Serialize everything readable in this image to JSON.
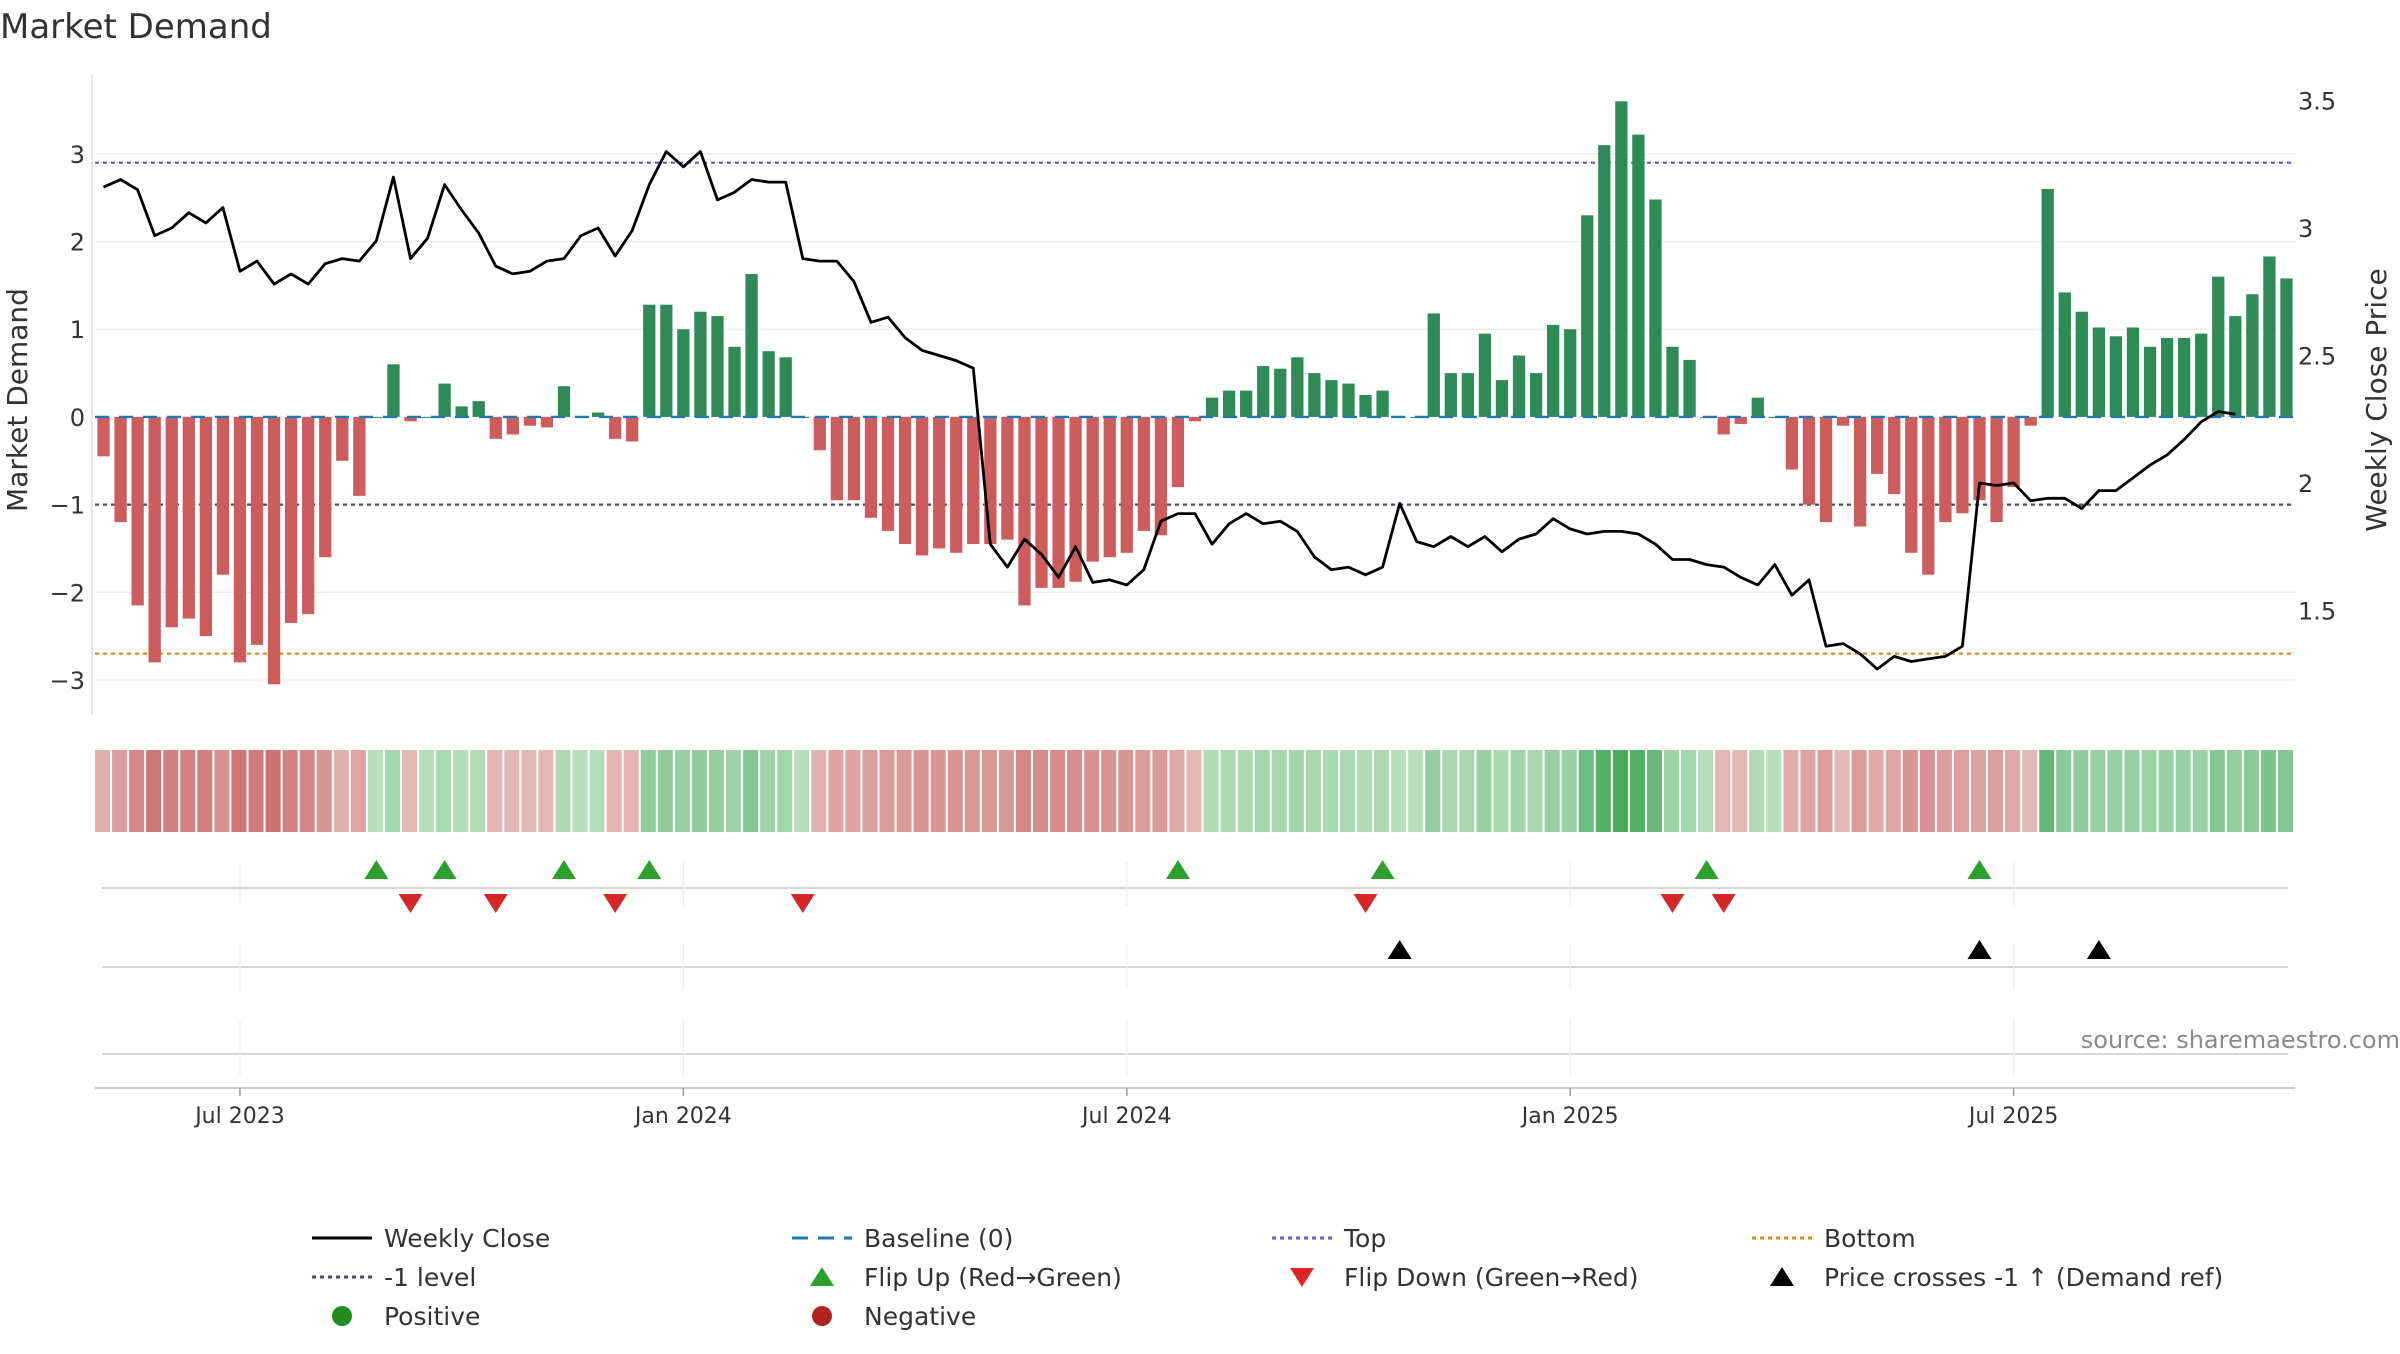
{
  "chart_data": {
    "type": "bar",
    "title": "Market Demand",
    "source_note": "source: sharemaestro.com",
    "ylabel_left": "Market Demand",
    "ylabel_right": "Weekly Close Price",
    "ylim_left": [
      -3.4,
      3.9
    ],
    "ylim_right": [
      1.09,
      3.6
    ],
    "yticks_left": [
      {
        "value": 3,
        "label": "3"
      },
      {
        "value": 2,
        "label": "2"
      },
      {
        "value": 1,
        "label": "1"
      },
      {
        "value": 0,
        "label": "0"
      },
      {
        "value": -1,
        "label": "−1"
      },
      {
        "value": -2,
        "label": "−2"
      },
      {
        "value": -3,
        "label": "−3"
      }
    ],
    "yticks_right": [
      {
        "value": 3.5,
        "label": "3.5"
      },
      {
        "value": 3,
        "label": "3"
      },
      {
        "value": 2.5,
        "label": "2.5"
      },
      {
        "value": 2,
        "label": "2"
      },
      {
        "value": 1.5,
        "label": "1.5"
      }
    ],
    "x_ticks": [
      {
        "week": 8,
        "label": "Jul 2023"
      },
      {
        "week": 34,
        "label": "Jan 2024"
      },
      {
        "week": 60,
        "label": "Jul 2024"
      },
      {
        "week": 86,
        "label": "Jan 2025"
      },
      {
        "week": 112,
        "label": "Jul 2025"
      }
    ],
    "reference_levels": {
      "top": 2.9,
      "minus_one": -1,
      "bottom": -2.7,
      "baseline": 0
    },
    "colors": {
      "positive_bar": "#2e8b57",
      "negative_bar": "#cd5c5c",
      "price_line": "#000000",
      "baseline": "#1f77b4",
      "top_line": "#6a5acd",
      "minus_one_line": "#4a4a6a",
      "bottom_line": "#e08a1e",
      "flip_up": "#2ca02c",
      "flip_down": "#d62728",
      "cross_marker": "#000000",
      "positive_dot": "#228b22",
      "negative_dot": "#b22222"
    },
    "series": [
      {
        "name": "Market Demand",
        "values": [
          -0.45,
          -1.2,
          -2.15,
          -2.8,
          -2.4,
          -2.3,
          -2.5,
          -1.8,
          -2.8,
          -2.6,
          -3.05,
          -2.35,
          -2.25,
          -1.6,
          -0.5,
          -0.9,
          0.0,
          0.6,
          -0.05,
          0.0,
          0.38,
          0.12,
          0.18,
          -0.25,
          -0.2,
          -0.1,
          -0.12,
          0.35,
          0.0,
          0.05,
          -0.25,
          -0.28,
          1.28,
          1.28,
          1.0,
          1.2,
          1.15,
          0.8,
          1.63,
          0.75,
          0.68,
          0.0,
          -0.38,
          -0.95,
          -0.95,
          -1.15,
          -1.3,
          -1.45,
          -1.58,
          -1.5,
          -1.55,
          -1.45,
          -1.45,
          -1.4,
          -2.15,
          -1.95,
          -1.95,
          -1.88,
          -1.65,
          -1.6,
          -1.55,
          -1.3,
          -1.35,
          -0.8,
          -0.05,
          0.22,
          0.3,
          0.3,
          0.58,
          0.55,
          0.68,
          0.5,
          0.42,
          0.38,
          0.25,
          0.3,
          0.0,
          0.0,
          1.18,
          0.5,
          0.5,
          0.95,
          0.42,
          0.7,
          0.5,
          1.05,
          1.0,
          2.3,
          3.1,
          3.6,
          3.22,
          2.48,
          0.8,
          0.65,
          0.0,
          -0.2,
          -0.08,
          0.22,
          0.0,
          -0.6,
          -1.0,
          -1.2,
          -0.1,
          -1.25,
          -0.65,
          -0.88,
          -1.55,
          -1.8,
          -1.2,
          -1.1,
          -0.95,
          -1.2,
          -0.8,
          -0.1,
          2.6,
          1.42,
          1.2,
          1.02,
          0.92,
          1.02,
          0.8,
          0.9,
          0.9,
          0.95,
          1.6,
          1.15,
          1.4,
          1.83,
          1.58
        ]
      },
      {
        "name": "Weekly Close",
        "values": [
          3.16,
          3.19,
          3.15,
          2.97,
          3.0,
          3.06,
          3.02,
          3.08,
          2.83,
          2.87,
          2.78,
          2.82,
          2.78,
          2.86,
          2.88,
          2.87,
          2.95,
          3.2,
          2.88,
          2.96,
          3.17,
          3.07,
          2.98,
          2.85,
          2.82,
          2.83,
          2.87,
          2.88,
          2.97,
          3.0,
          2.89,
          2.99,
          3.17,
          3.3,
          3.24,
          3.3,
          3.11,
          3.14,
          3.19,
          3.18,
          3.18,
          2.88,
          2.87,
          2.87,
          2.79,
          2.63,
          2.65,
          2.57,
          2.52,
          2.5,
          2.48,
          2.45,
          1.76,
          1.67,
          1.78,
          1.72,
          1.63,
          1.75,
          1.61,
          1.62,
          1.6,
          1.66,
          1.85,
          1.88,
          1.88,
          1.76,
          1.84,
          1.88,
          1.84,
          1.85,
          1.81,
          1.71,
          1.66,
          1.67,
          1.64,
          1.67,
          1.92,
          1.77,
          1.75,
          1.79,
          1.75,
          1.79,
          1.73,
          1.78,
          1.8,
          1.86,
          1.82,
          1.8,
          1.81,
          1.81,
          1.8,
          1.76,
          1.7,
          1.7,
          1.68,
          1.67,
          1.63,
          1.6,
          1.68,
          1.56,
          1.62,
          1.36,
          1.37,
          1.33,
          1.27,
          1.32,
          1.3,
          1.31,
          1.32,
          1.36,
          2.0,
          1.99,
          2.0,
          1.93,
          1.94,
          1.94,
          1.9,
          1.97,
          1.97,
          2.02,
          2.07,
          2.11,
          2.17,
          2.24,
          2.28,
          2.27
        ]
      }
    ],
    "strip": {
      "label": "Demand colour strip",
      "values_from_series": "Market Demand"
    },
    "markers": {
      "flip_up_weeks": [
        16,
        20,
        27,
        32,
        63,
        75,
        94,
        110
      ],
      "flip_down_weeks": [
        18,
        23,
        30,
        41,
        74,
        92,
        95
      ],
      "price_cross_weeks": [
        76,
        110,
        117
      ]
    },
    "legend": {
      "placement": "bottom-center",
      "entries": [
        {
          "label": "Weekly Close",
          "kind": "line-solid",
          "color": "#000000"
        },
        {
          "label": "Baseline (0)",
          "kind": "line-dashed",
          "color": "#1f77b4"
        },
        {
          "label": "Top",
          "kind": "line-dotted",
          "color": "#6a5acd"
        },
        {
          "label": "Bottom",
          "kind": "line-dotted",
          "color": "#e08a1e"
        },
        {
          "label": "-1 level",
          "kind": "line-dotted",
          "color": "#4a4a6a"
        },
        {
          "label": "Flip Up (Red→Green)",
          "kind": "triangle-up",
          "color": "#2ca02c"
        },
        {
          "label": "Flip Down (Green→Red)",
          "kind": "triangle-down",
          "color": "#d62728"
        },
        {
          "label": "Price crosses -1 ↑ (Demand ref)",
          "kind": "triangle-up",
          "color": "#000000"
        },
        {
          "label": "Positive",
          "kind": "dot",
          "color": "#228b22"
        },
        {
          "label": "Negative",
          "kind": "dot",
          "color": "#b22222"
        }
      ]
    }
  }
}
